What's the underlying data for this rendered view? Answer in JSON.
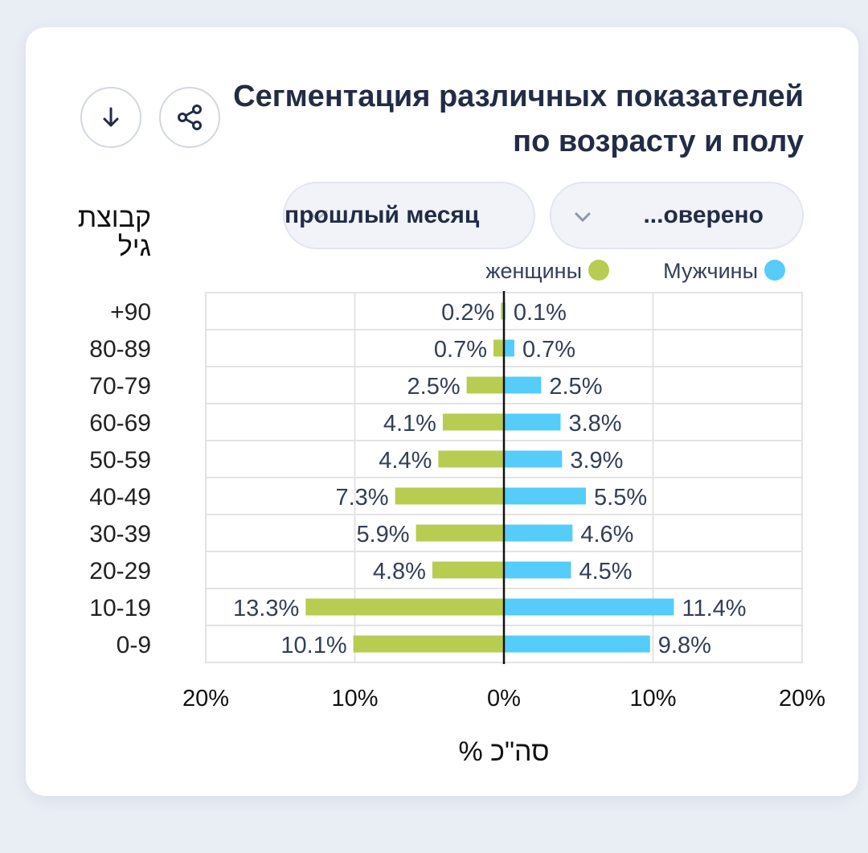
{
  "header": {
    "title": "Сегментация различных показателей по возрасту и полу",
    "download_icon": "arrow-down-icon",
    "share_icon": "share-icon"
  },
  "filters": {
    "period_label": "прошлый месяц",
    "status_label": "...оверено"
  },
  "chart_data": {
    "type": "bar",
    "orientation": "horizontal-diverging",
    "ylabel": "קבוצת גיל",
    "xlabel": "% סה\"כ",
    "xlim": [
      -20,
      20
    ],
    "x_ticks": [
      "20%",
      "10%",
      "0%",
      "10%",
      "20%"
    ],
    "grid": true,
    "legend_position": "top-right",
    "categories": [
      "+90",
      "80-89",
      "70-79",
      "60-69",
      "50-59",
      "40-49",
      "30-39",
      "20-29",
      "10-19",
      "0-9"
    ],
    "series": [
      {
        "name": "женщины",
        "color": "#b8cc52",
        "side": "left",
        "values": [
          0.2,
          0.7,
          2.5,
          4.1,
          4.4,
          7.3,
          5.9,
          4.8,
          13.3,
          10.1
        ],
        "labels": [
          "0.2%",
          "0.7%",
          "2.5%",
          "4.1%",
          "4.4%",
          "7.3%",
          "5.9%",
          "4.8%",
          "13.3%",
          "10.1%"
        ]
      },
      {
        "name": "Мужчины",
        "color": "#55ccfa",
        "side": "right",
        "values": [
          0.1,
          0.7,
          2.5,
          3.8,
          3.9,
          5.5,
          4.6,
          4.5,
          11.4,
          9.8
        ],
        "labels": [
          "0.1%",
          "0.7%",
          "2.5%",
          "3.8%",
          "3.9%",
          "5.5%",
          "4.6%",
          "4.5%",
          "11.4%",
          "9.8%"
        ]
      }
    ]
  }
}
